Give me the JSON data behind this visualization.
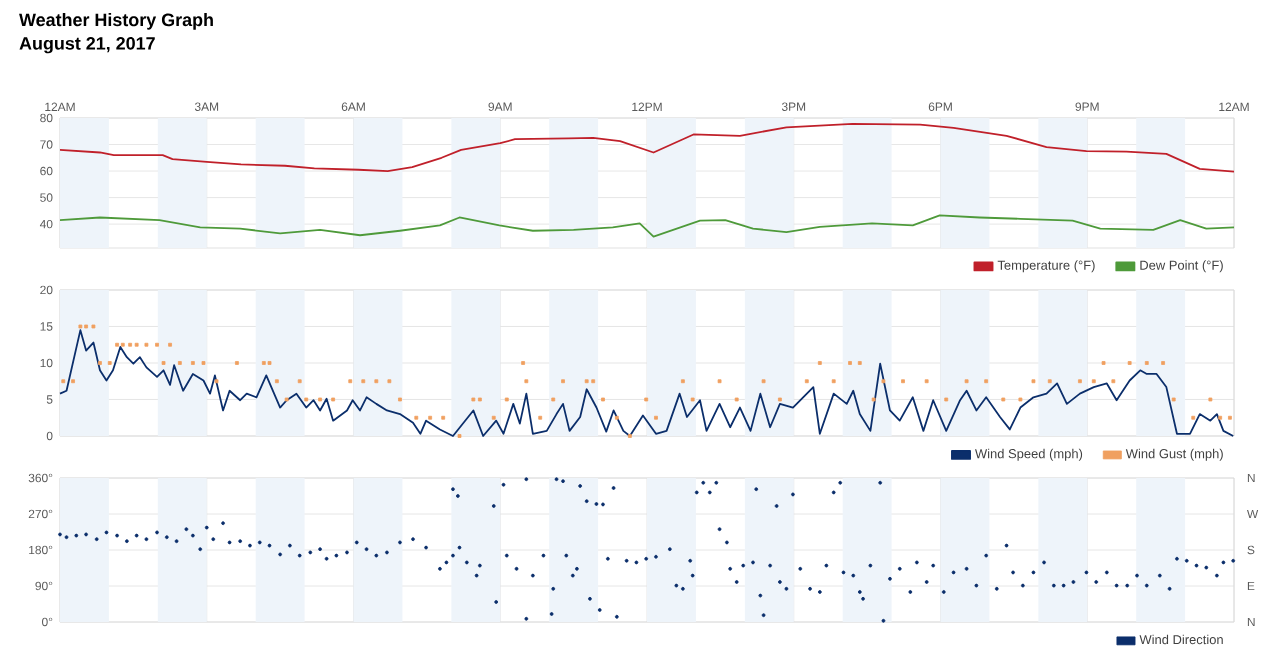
{
  "chart_data": [
    {
      "type": "line",
      "title": "Weather History Graph",
      "subtitle": "August 21, 2017",
      "xlim": [
        "2017-08-21T00:00",
        "2017-08-22T00:00"
      ],
      "xticks": [
        {
          "value": "2017-08-21T00:00",
          "label": "12AM"
        },
        {
          "value": "2017-08-21T03:00",
          "label": "3AM"
        },
        {
          "value": "2017-08-21T06:00",
          "label": "6AM"
        },
        {
          "value": "2017-08-21T09:00",
          "label": "9AM"
        },
        {
          "value": "2017-08-21T12:00",
          "label": "12PM"
        },
        {
          "value": "2017-08-21T15:00",
          "label": "3PM"
        },
        {
          "value": "2017-08-21T18:00",
          "label": "6PM"
        },
        {
          "value": "2017-08-21T21:00",
          "label": "9PM"
        },
        {
          "value": "2017-08-22T00:00",
          "label": "12AM"
        }
      ],
      "ylim": [
        31,
        80
      ],
      "yticks": [
        40,
        50,
        60,
        70,
        80
      ],
      "grid": true,
      "legend": "bottom right",
      "bands": [
        {
          "axis": "x",
          "from": "2017-08-21T00:00",
          "to": "2017-08-21T01:00",
          "color": "#eef4fa"
        },
        {
          "axis": "x",
          "from": "2017-08-21T02:00",
          "to": "2017-08-21T03:00",
          "color": "#eef4fa"
        },
        {
          "axis": "x",
          "from": "2017-08-21T04:00",
          "to": "2017-08-21T05:00",
          "color": "#eef4fa"
        },
        {
          "axis": "x",
          "from": "2017-08-21T06:00",
          "to": "2017-08-21T07:00",
          "color": "#eef4fa"
        },
        {
          "axis": "x",
          "from": "2017-08-21T08:00",
          "to": "2017-08-21T09:00",
          "color": "#eef4fa"
        },
        {
          "axis": "x",
          "from": "2017-08-21T10:00",
          "to": "2017-08-21T11:00",
          "color": "#eef4fa"
        },
        {
          "axis": "x",
          "from": "2017-08-21T12:00",
          "to": "2017-08-21T13:00",
          "color": "#eef4fa"
        },
        {
          "axis": "x",
          "from": "2017-08-21T14:00",
          "to": "2017-08-21T15:00",
          "color": "#eef4fa"
        },
        {
          "axis": "x",
          "from": "2017-08-21T16:00",
          "to": "2017-08-21T17:00",
          "color": "#eef4fa"
        },
        {
          "axis": "x",
          "from": "2017-08-21T18:00",
          "to": "2017-08-21T19:00",
          "color": "#eef4fa"
        },
        {
          "axis": "x",
          "from": "2017-08-21T20:00",
          "to": "2017-08-21T21:00",
          "color": "#eef4fa"
        },
        {
          "axis": "x",
          "from": "2017-08-21T22:00",
          "to": "2017-08-21T23:00",
          "color": "#eef4fa"
        }
      ],
      "series": [
        {
          "name": "Temperature (°F)",
          "color": "#c0202a",
          "x": [
            "2017-08-21T00:00",
            "2017-08-21T00:49",
            "2017-08-21T01:06",
            "2017-08-21T02:06",
            "2017-08-21T02:18",
            "2017-08-21T03:00",
            "2017-08-21T03:42",
            "2017-08-21T04:36",
            "2017-08-21T05:12",
            "2017-08-21T06:06",
            "2017-08-21T06:42",
            "2017-08-21T07:12",
            "2017-08-21T07:48",
            "2017-08-21T08:12",
            "2017-08-21T09:00",
            "2017-08-21T09:18",
            "2017-08-21T10:24",
            "2017-08-21T10:54",
            "2017-08-21T11:27",
            "2017-08-21T12:08",
            "2017-08-21T12:57",
            "2017-08-21T13:54",
            "2017-08-21T14:51",
            "2017-08-21T16:12",
            "2017-08-21T17:35",
            "2017-08-21T18:16",
            "2017-08-21T19:21",
            "2017-08-21T20:10",
            "2017-08-21T20:59",
            "2017-08-21T21:48",
            "2017-08-21T22:37",
            "2017-08-21T23:18",
            "2017-08-22T00:00"
          ],
          "values": [
            68,
            67,
            66,
            66,
            64.5,
            63.5,
            62.5,
            62,
            61,
            60.5,
            60,
            61.5,
            65,
            68,
            70.5,
            72,
            72.3,
            72.5,
            71.3,
            67,
            73.8,
            73.3,
            76.5,
            77.8,
            77.5,
            76.3,
            73.3,
            69,
            67.5,
            67.3,
            66.5,
            60.8,
            59.8
          ]
        },
        {
          "name": "Dew Point (°F)",
          "color": "#4e9a3a",
          "x": [
            "2017-08-21T00:00",
            "2017-08-21T00:49",
            "2017-08-21T02:02",
            "2017-08-21T02:52",
            "2017-08-21T03:41",
            "2017-08-21T04:30",
            "2017-08-21T05:19",
            "2017-08-21T06:08",
            "2017-08-21T06:57",
            "2017-08-21T07:46",
            "2017-08-21T08:10",
            "2017-08-21T08:59",
            "2017-08-21T09:40",
            "2017-08-21T10:30",
            "2017-08-21T11:18",
            "2017-08-21T11:51",
            "2017-08-21T12:08",
            "2017-08-21T13:05",
            "2017-08-21T13:36",
            "2017-08-21T14:10",
            "2017-08-21T14:51",
            "2017-08-21T15:32",
            "2017-08-21T16:36",
            "2017-08-21T17:26",
            "2017-08-21T17:59",
            "2017-08-21T18:48",
            "2017-08-21T19:38",
            "2017-08-21T20:42",
            "2017-08-21T21:16",
            "2017-08-21T22:21",
            "2017-08-21T22:54",
            "2017-08-21T23:26",
            "2017-08-22T00:00"
          ],
          "values": [
            41.5,
            42.5,
            41.5,
            38.8,
            38.3,
            36.5,
            37.8,
            35.8,
            37.5,
            39.5,
            42.5,
            39.5,
            37.5,
            37.8,
            38.8,
            40.3,
            35.3,
            41.3,
            41.5,
            38.3,
            37,
            39,
            40.3,
            39.5,
            43.3,
            42.5,
            42,
            41.3,
            38.3,
            37.8,
            41.5,
            38.3,
            38.8
          ]
        }
      ]
    },
    {
      "type": "line",
      "xlim": [
        "2017-08-21T00:00",
        "2017-08-22T00:00"
      ],
      "xticks": [
        {
          "value": "2017-08-21T00:00",
          "label": null
        },
        {
          "value": "2017-08-21T03:00",
          "label": null
        },
        {
          "value": "2017-08-21T06:00",
          "label": null
        },
        {
          "value": "2017-08-21T09:00",
          "label": null
        },
        {
          "value": "2017-08-21T12:00",
          "label": null
        },
        {
          "value": "2017-08-21T15:00",
          "label": null
        },
        {
          "value": "2017-08-21T18:00",
          "label": null
        },
        {
          "value": "2017-08-21T21:00",
          "label": null
        },
        {
          "value": "2017-08-22T00:00",
          "label": null
        }
      ],
      "ylim": [
        0,
        20
      ],
      "yticks": [
        0,
        5,
        10,
        15,
        20
      ],
      "grid": true,
      "legend": "bottom right",
      "tick_labels": "y",
      "bands": [
        {
          "axis": "x",
          "from": "2017-08-21T00:00",
          "to": "2017-08-21T01:00",
          "color": "#eef4fa"
        },
        {
          "axis": "x",
          "from": "2017-08-21T02:00",
          "to": "2017-08-21T03:00",
          "color": "#eef4fa"
        },
        {
          "axis": "x",
          "from": "2017-08-21T04:00",
          "to": "2017-08-21T05:00",
          "color": "#eef4fa"
        },
        {
          "axis": "x",
          "from": "2017-08-21T06:00",
          "to": "2017-08-21T07:00",
          "color": "#eef4fa"
        },
        {
          "axis": "x",
          "from": "2017-08-21T08:00",
          "to": "2017-08-21T09:00",
          "color": "#eef4fa"
        },
        {
          "axis": "x",
          "from": "2017-08-21T10:00",
          "to": "2017-08-21T11:00",
          "color": "#eef4fa"
        },
        {
          "axis": "x",
          "from": "2017-08-21T12:00",
          "to": "2017-08-21T13:00",
          "color": "#eef4fa"
        },
        {
          "axis": "x",
          "from": "2017-08-21T14:00",
          "to": "2017-08-21T15:00",
          "color": "#eef4fa"
        },
        {
          "axis": "x",
          "from": "2017-08-21T16:00",
          "to": "2017-08-21T17:00",
          "color": "#eef4fa"
        },
        {
          "axis": "x",
          "from": "2017-08-21T18:00",
          "to": "2017-08-21T19:00",
          "color": "#eef4fa"
        },
        {
          "axis": "x",
          "from": "2017-08-21T20:00",
          "to": "2017-08-21T21:00",
          "color": "#eef4fa"
        },
        {
          "axis": "x",
          "from": "2017-08-21T22:00",
          "to": "2017-08-21T23:00",
          "color": "#eef4fa"
        }
      ],
      "series": [
        {
          "name": "Wind Speed (mph)",
          "color": "#0b2e6b",
          "x": [
            "2017-08-21T00:00",
            "2017-08-21T00:08",
            "2017-08-21T00:25",
            "2017-08-21T00:32",
            "2017-08-21T00:41",
            "2017-08-21T00:49",
            "2017-08-21T00:57",
            "2017-08-21T01:05",
            "2017-08-21T01:14",
            "2017-08-21T01:22",
            "2017-08-21T01:30",
            "2017-08-21T01:38",
            "2017-08-21T01:46",
            "2017-08-21T01:59",
            "2017-08-21T02:07",
            "2017-08-21T02:15",
            "2017-08-21T02:20",
            "2017-08-21T02:31",
            "2017-08-21T02:43",
            "2017-08-21T02:56",
            "2017-08-21T03:04",
            "2017-08-21T03:10",
            "2017-08-21T03:20",
            "2017-08-21T03:28",
            "2017-08-21T03:41",
            "2017-08-21T03:49",
            "2017-08-21T04:01",
            "2017-08-21T04:13",
            "2017-08-21T04:30",
            "2017-08-21T04:38",
            "2017-08-21T04:50",
            "2017-08-21T05:02",
            "2017-08-21T05:11",
            "2017-08-21T05:19",
            "2017-08-21T05:27",
            "2017-08-21T05:35",
            "2017-08-21T05:52",
            "2017-08-21T05:59",
            "2017-08-21T06:08",
            "2017-08-21T06:16",
            "2017-08-21T06:28",
            "2017-08-21T06:41",
            "2017-08-21T06:57",
            "2017-08-21T07:13",
            "2017-08-21T07:22",
            "2017-08-21T07:29",
            "2017-08-21T07:46",
            "2017-08-21T08:02",
            "2017-08-21T08:27",
            "2017-08-21T08:39",
            "2017-08-21T08:55",
            "2017-08-21T09:04",
            "2017-08-21T09:16",
            "2017-08-21T09:24",
            "2017-08-21T09:32",
            "2017-08-21T09:40",
            "2017-08-21T09:57",
            "2017-08-21T10:09",
            "2017-08-21T10:17",
            "2017-08-21T10:25",
            "2017-08-21T10:38",
            "2017-08-21T10:46",
            "2017-08-21T10:58",
            "2017-08-21T11:10",
            "2017-08-21T11:19",
            "2017-08-21T11:31",
            "2017-08-21T11:39",
            "2017-08-21T11:55",
            "2017-08-21T12:11",
            "2017-08-21T12:24",
            "2017-08-21T12:40",
            "2017-08-21T12:49",
            "2017-08-21T13:05",
            "2017-08-21T13:13",
            "2017-08-21T13:29",
            "2017-08-21T13:42",
            "2017-08-21T13:54",
            "2017-08-21T14:07",
            "2017-08-21T14:19",
            "2017-08-21T14:31",
            "2017-08-21T14:43",
            "2017-08-21T14:59",
            "2017-08-21T15:24",
            "2017-08-21T15:32",
            "2017-08-21T15:49",
            "2017-08-21T16:05",
            "2017-08-21T16:13",
            "2017-08-21T16:21",
            "2017-08-21T16:34",
            "2017-08-21T16:46",
            "2017-08-21T16:58",
            "2017-08-21T17:10",
            "2017-08-21T17:26",
            "2017-08-21T17:39",
            "2017-08-21T17:51",
            "2017-08-21T18:07",
            "2017-08-21T18:24",
            "2017-08-21T18:32",
            "2017-08-21T18:44",
            "2017-08-21T18:56",
            "2017-08-21T19:13",
            "2017-08-21T19:25",
            "2017-08-21T19:38",
            "2017-08-21T19:54",
            "2017-08-21T20:10",
            "2017-08-21T20:23",
            "2017-08-21T20:35",
            "2017-08-21T20:51",
            "2017-08-21T21:08",
            "2017-08-21T21:24",
            "2017-08-21T21:36",
            "2017-08-21T21:52",
            "2017-08-21T22:05",
            "2017-08-21T22:13",
            "2017-08-21T22:25",
            "2017-08-21T22:37",
            "2017-08-21T22:50",
            "2017-08-21T23:06",
            "2017-08-21T23:18",
            "2017-08-21T23:31",
            "2017-08-21T23:39",
            "2017-08-21T23:47",
            "2017-08-21T23:59"
          ],
          "values": [
            5.8,
            6.2,
            14.5,
            11.7,
            12.8,
            9,
            7.6,
            9,
            12.2,
            10.8,
            9.9,
            10.8,
            9.4,
            8.1,
            9,
            7,
            9.7,
            6.2,
            8.5,
            7.6,
            5.8,
            8.3,
            3.5,
            6.2,
            4.9,
            5.8,
            5.3,
            8.3,
            3.9,
            4.9,
            5.8,
            3.9,
            4.9,
            3.5,
            5.1,
            2.1,
            3.5,
            4.9,
            3.5,
            5.3,
            4.4,
            3.5,
            3,
            1.8,
            0.3,
            2.1,
            0.9,
            0,
            3.5,
            0,
            2.1,
            0.3,
            4.4,
            1.7,
            5.8,
            0.3,
            0.7,
            3,
            4.4,
            0.7,
            2.6,
            6.4,
            3.9,
            0.6,
            3.5,
            0.7,
            0,
            2.8,
            0.3,
            0.7,
            5.8,
            2.6,
            4.9,
            0.7,
            4.4,
            1.2,
            3.9,
            0.7,
            5.8,
            1.2,
            4.4,
            3.9,
            6.7,
            0.3,
            5.8,
            4.4,
            6.2,
            3,
            0.7,
            9.9,
            3.5,
            2.1,
            5.3,
            0.7,
            4.9,
            0.7,
            4.9,
            6.2,
            3.5,
            5.3,
            2.6,
            0.9,
            3.9,
            5.3,
            5.8,
            7.2,
            4.4,
            5.8,
            6.7,
            7.2,
            4.9,
            7.6,
            9,
            8.5,
            8.5,
            6.7,
            0.3,
            0.3,
            3,
            2.1,
            3,
            0.7,
            0
          ]
        },
        {
          "name": "Wind Gust (mph)",
          "type": "scatter",
          "marker": "square",
          "color": "#f0a060",
          "x": [
            "2017-08-21T00:04",
            "2017-08-21T00:16",
            "2017-08-21T00:25",
            "2017-08-21T00:32",
            "2017-08-21T00:41",
            "2017-08-21T00:49",
            "2017-08-21T01:01",
            "2017-08-21T01:10",
            "2017-08-21T01:17",
            "2017-08-21T01:26",
            "2017-08-21T01:34",
            "2017-08-21T01:46",
            "2017-08-21T01:59",
            "2017-08-21T02:07",
            "2017-08-21T02:15",
            "2017-08-21T02:27",
            "2017-08-21T02:43",
            "2017-08-21T02:56",
            "2017-08-21T03:12",
            "2017-08-21T03:37",
            "2017-08-21T04:10",
            "2017-08-21T04:17",
            "2017-08-21T04:26",
            "2017-08-21T04:38",
            "2017-08-21T04:54",
            "2017-08-21T05:02",
            "2017-08-21T05:19",
            "2017-08-21T05:35",
            "2017-08-21T05:56",
            "2017-08-21T06:12",
            "2017-08-21T06:28",
            "2017-08-21T06:44",
            "2017-08-21T06:57",
            "2017-08-21T07:17",
            "2017-08-21T07:34",
            "2017-08-21T07:50",
            "2017-08-21T08:10",
            "2017-08-21T08:27",
            "2017-08-21T08:35",
            "2017-08-21T08:52",
            "2017-08-21T09:08",
            "2017-08-21T09:28",
            "2017-08-21T09:32",
            "2017-08-21T09:49",
            "2017-08-21T10:05",
            "2017-08-21T10:17",
            "2017-08-21T10:46",
            "2017-08-21T10:54",
            "2017-08-21T11:06",
            "2017-08-21T11:23",
            "2017-08-21T11:39",
            "2017-08-21T11:59",
            "2017-08-21T12:11",
            "2017-08-21T12:44",
            "2017-08-21T12:56",
            "2017-08-21T13:29",
            "2017-08-21T13:50",
            "2017-08-21T14:23",
            "2017-08-21T14:43",
            "2017-08-21T15:16",
            "2017-08-21T15:32",
            "2017-08-21T15:49",
            "2017-08-21T16:09",
            "2017-08-21T16:21",
            "2017-08-21T16:38",
            "2017-08-21T16:50",
            "2017-08-21T17:14",
            "2017-08-21T17:43",
            "2017-08-21T18:07",
            "2017-08-21T18:32",
            "2017-08-21T18:56",
            "2017-08-21T19:17",
            "2017-08-21T19:38",
            "2017-08-21T19:54",
            "2017-08-21T20:14",
            "2017-08-21T20:51",
            "2017-08-21T21:08",
            "2017-08-21T21:20",
            "2017-08-21T21:32",
            "2017-08-21T21:52",
            "2017-08-21T22:13",
            "2017-08-21T22:33",
            "2017-08-21T22:46",
            "2017-08-21T23:10",
            "2017-08-21T23:31",
            "2017-08-21T23:43",
            "2017-08-21T23:55"
          ],
          "values": [
            7.5,
            7.5,
            15,
            15,
            15,
            10,
            10,
            12.5,
            12.5,
            12.5,
            12.5,
            12.5,
            12.5,
            10,
            12.5,
            10,
            10,
            10,
            7.5,
            10,
            10,
            10,
            7.5,
            5,
            7.5,
            5,
            5,
            5,
            7.5,
            7.5,
            7.5,
            7.5,
            5,
            2.5,
            2.5,
            2.5,
            0,
            5,
            5,
            2.5,
            5,
            10,
            7.5,
            2.5,
            5,
            7.5,
            7.5,
            7.5,
            5,
            2.5,
            0,
            5,
            2.5,
            7.5,
            5,
            7.5,
            5,
            7.5,
            5,
            7.5,
            10,
            7.5,
            10,
            10,
            5,
            7.5,
            7.5,
            7.5,
            5,
            7.5,
            7.5,
            5,
            5,
            7.5,
            7.5,
            7.5,
            7.5,
            10,
            7.5,
            10,
            10,
            10,
            5,
            2.5,
            5,
            2.5,
            2.5
          ]
        }
      ]
    },
    {
      "type": "scatter",
      "marker": "circle",
      "xlim": [
        "2017-08-21T00:00",
        "2017-08-22T00:00"
      ],
      "xticks": [
        {
          "value": "2017-08-21T00:00",
          "label": null
        },
        {
          "value": "2017-08-21T03:00",
          "label": null
        },
        {
          "value": "2017-08-21T06:00",
          "label": null
        },
        {
          "value": "2017-08-21T09:00",
          "label": null
        },
        {
          "value": "2017-08-21T12:00",
          "label": null
        },
        {
          "value": "2017-08-21T15:00",
          "label": null
        },
        {
          "value": "2017-08-21T18:00",
          "label": null
        },
        {
          "value": "2017-08-21T21:00",
          "label": null
        },
        {
          "value": "2017-08-22T00:00",
          "label": null
        }
      ],
      "ylim": [
        0,
        360
      ],
      "yticks": [
        {
          "value": 0,
          "label": "0°"
        },
        {
          "value": 90,
          "label": "90°"
        },
        {
          "value": 180,
          "label": "180°"
        },
        {
          "value": 270,
          "label": "270°"
        },
        {
          "value": 360,
          "label": "360°"
        }
      ],
      "annotations": [
        "N",
        "W",
        "S",
        "E",
        "N"
      ],
      "grid": true,
      "legend": "bottom right",
      "tick_labels": "y",
      "bands": [
        {
          "axis": "x",
          "from": "2017-08-21T00:00",
          "to": "2017-08-21T01:00",
          "color": "#eef4fa"
        },
        {
          "axis": "x",
          "from": "2017-08-21T02:00",
          "to": "2017-08-21T03:00",
          "color": "#eef4fa"
        },
        {
          "axis": "x",
          "from": "2017-08-21T04:00",
          "to": "2017-08-21T05:00",
          "color": "#eef4fa"
        },
        {
          "axis": "x",
          "from": "2017-08-21T06:00",
          "to": "2017-08-21T07:00",
          "color": "#eef4fa"
        },
        {
          "axis": "x",
          "from": "2017-08-21T08:00",
          "to": "2017-08-21T09:00",
          "color": "#eef4fa"
        },
        {
          "axis": "x",
          "from": "2017-08-21T10:00",
          "to": "2017-08-21T11:00",
          "color": "#eef4fa"
        },
        {
          "axis": "x",
          "from": "2017-08-21T12:00",
          "to": "2017-08-21T13:00",
          "color": "#eef4fa"
        },
        {
          "axis": "x",
          "from": "2017-08-21T14:00",
          "to": "2017-08-21T15:00",
          "color": "#eef4fa"
        },
        {
          "axis": "x",
          "from": "2017-08-21T16:00",
          "to": "2017-08-21T17:00",
          "color": "#eef4fa"
        },
        {
          "axis": "x",
          "from": "2017-08-21T18:00",
          "to": "2017-08-21T19:00",
          "color": "#eef4fa"
        },
        {
          "axis": "x",
          "from": "2017-08-21T20:00",
          "to": "2017-08-21T21:00",
          "color": "#eef4fa"
        },
        {
          "axis": "x",
          "from": "2017-08-21T22:00",
          "to": "2017-08-21T23:00",
          "color": "#eef4fa"
        }
      ],
      "series": [
        {
          "name": "Wind Direction",
          "color": "#0b2e6b",
          "x": [
            "2017-08-21T00:00",
            "2017-08-21T00:08",
            "2017-08-21T00:20",
            "2017-08-21T00:32",
            "2017-08-21T00:45",
            "2017-08-21T00:57",
            "2017-08-21T01:10",
            "2017-08-21T01:22",
            "2017-08-21T01:34",
            "2017-08-21T01:46",
            "2017-08-21T01:59",
            "2017-08-21T02:11",
            "2017-08-21T02:23",
            "2017-08-21T02:35",
            "2017-08-21T02:43",
            "2017-08-21T02:52",
            "2017-08-21T03:00",
            "2017-08-21T03:08",
            "2017-08-21T03:20",
            "2017-08-21T03:28",
            "2017-08-21T03:41",
            "2017-08-21T03:53",
            "2017-08-21T04:05",
            "2017-08-21T04:17",
            "2017-08-21T04:30",
            "2017-08-21T04:42",
            "2017-08-21T04:54",
            "2017-08-21T05:07",
            "2017-08-21T05:19",
            "2017-08-21T05:27",
            "2017-08-21T05:39",
            "2017-08-21T05:52",
            "2017-08-21T06:04",
            "2017-08-21T06:16",
            "2017-08-21T06:28",
            "2017-08-21T06:41",
            "2017-08-21T06:57",
            "2017-08-21T07:13",
            "2017-08-21T07:29",
            "2017-08-21T07:46",
            "2017-08-21T07:54",
            "2017-08-21T08:02",
            "2017-08-21T08:02",
            "2017-08-21T08:08",
            "2017-08-21T08:10",
            "2017-08-21T08:19",
            "2017-08-21T08:31",
            "2017-08-21T08:35",
            "2017-08-21T08:52",
            "2017-08-21T08:55",
            "2017-08-21T09:04",
            "2017-08-21T09:08",
            "2017-08-21T09:20",
            "2017-08-21T09:32",
            "2017-08-21T09:32",
            "2017-08-21T09:40",
            "2017-08-21T09:53",
            "2017-08-21T10:03",
            "2017-08-21T10:05",
            "2017-08-21T10:09",
            "2017-08-21T10:17",
            "2017-08-21T10:21",
            "2017-08-21T10:29",
            "2017-08-21T10:34",
            "2017-08-21T10:38",
            "2017-08-21T10:46",
            "2017-08-21T10:50",
            "2017-08-21T10:58",
            "2017-08-21T11:02",
            "2017-08-21T11:06",
            "2017-08-21T11:12",
            "2017-08-21T11:19",
            "2017-08-21T11:23",
            "2017-08-21T11:35",
            "2017-08-21T11:47",
            "2017-08-21T11:59",
            "2017-08-21T12:11",
            "2017-08-21T12:28",
            "2017-08-21T12:36",
            "2017-08-21T12:44",
            "2017-08-21T12:53",
            "2017-08-21T12:56",
            "2017-08-21T13:01",
            "2017-08-21T13:09",
            "2017-08-21T13:17",
            "2017-08-21T13:25",
            "2017-08-21T13:29",
            "2017-08-21T13:38",
            "2017-08-21T13:42",
            "2017-08-21T13:50",
            "2017-08-21T13:58",
            "2017-08-21T14:10",
            "2017-08-21T14:14",
            "2017-08-21T14:19",
            "2017-08-21T14:23",
            "2017-08-21T14:31",
            "2017-08-21T14:39",
            "2017-08-21T14:43",
            "2017-08-21T14:51",
            "2017-08-21T14:59",
            "2017-08-21T15:08",
            "2017-08-21T15:20",
            "2017-08-21T15:32",
            "2017-08-21T15:40",
            "2017-08-21T15:49",
            "2017-08-21T15:57",
            "2017-08-21T16:01",
            "2017-08-21T16:13",
            "2017-08-21T16:21",
            "2017-08-21T16:25",
            "2017-08-21T16:34",
            "2017-08-21T16:46",
            "2017-08-21T16:50",
            "2017-08-21T16:58",
            "2017-08-21T17:10",
            "2017-08-21T17:23",
            "2017-08-21T17:31",
            "2017-08-21T17:43",
            "2017-08-21T17:51",
            "2017-08-21T18:04",
            "2017-08-21T18:16",
            "2017-08-21T18:32",
            "2017-08-21T18:44",
            "2017-08-21T18:56",
            "2017-08-21T19:09",
            "2017-08-21T19:21",
            "2017-08-21T19:29",
            "2017-08-21T19:41",
            "2017-08-21T19:54",
            "2017-08-21T20:07",
            "2017-08-21T20:19",
            "2017-08-21T20:31",
            "2017-08-21T20:43",
            "2017-08-21T20:59",
            "2017-08-21T21:11",
            "2017-08-21T21:24",
            "2017-08-21T21:36",
            "2017-08-21T21:49",
            "2017-08-21T22:01",
            "2017-08-21T22:13",
            "2017-08-21T22:29",
            "2017-08-21T22:41",
            "2017-08-21T22:50",
            "2017-08-21T23:02",
            "2017-08-21T23:14",
            "2017-08-21T23:26",
            "2017-08-21T23:39",
            "2017-08-21T23:47",
            "2017-08-21T23:59"
          ],
          "values": [
            219,
            212,
            216,
            219,
            207,
            224,
            216,
            202,
            216,
            207,
            224,
            212,
            202,
            232,
            216,
            182,
            236,
            207,
            247,
            199,
            202,
            191,
            199,
            191,
            169,
            191,
            166,
            174,
            182,
            158,
            166,
            174,
            199,
            182,
            166,
            174,
            199,
            207,
            186,
            133,
            149,
            166,
            332,
            315,
            186,
            149,
            116,
            141,
            290,
            50,
            343,
            166,
            133,
            357,
            8,
            116,
            166,
            20,
            83,
            357,
            352,
            166,
            116,
            133,
            340,
            302,
            58,
            295,
            30,
            294,
            158,
            335,
            13,
            153,
            149,
            158,
            163,
            182,
            91,
            83,
            153,
            116,
            324,
            348,
            324,
            348,
            232,
            199,
            133,
            100,
            141,
            149,
            332,
            66,
            17,
            141,
            290,
            100,
            83,
            319,
            133,
            83,
            75,
            141,
            324,
            348,
            124,
            116,
            75,
            58,
            141,
            348,
            3,
            108,
            133,
            75,
            149,
            100,
            141,
            75,
            124,
            133,
            91,
            166,
            83,
            191,
            124,
            91,
            124,
            149,
            91,
            91,
            100,
            124,
            100,
            124,
            91,
            91,
            116,
            91,
            116,
            83,
            158,
            153,
            141,
            136,
            116,
            149,
            153
          ]
        }
      ]
    }
  ]
}
